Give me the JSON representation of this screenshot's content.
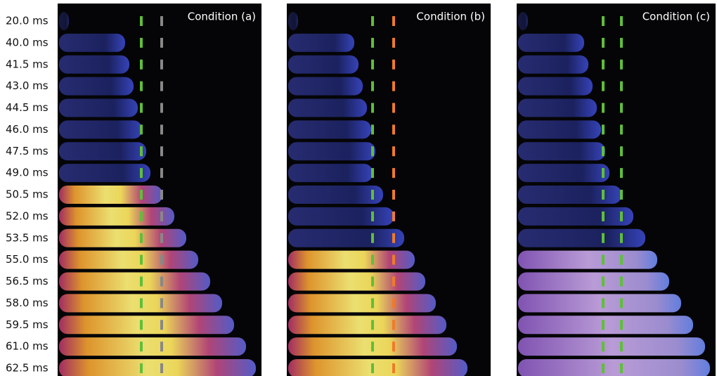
{
  "time_labels": [
    "20.0 ms",
    "40.0 ms",
    "41.5 ms",
    "43.0 ms",
    "44.5 ms",
    "46.0 ms",
    "47.5 ms",
    "49.0 ms",
    "50.5 ms",
    "52.0 ms",
    "53.5 ms",
    "55.0 ms",
    "56.5 ms",
    "58.0 ms",
    "59.5 ms",
    "61.0 ms",
    "62.5 ms"
  ],
  "panels": [
    {
      "title": "Condition (a)"
    },
    {
      "title": "Condition (b)"
    },
    {
      "title": "Condition (c)"
    }
  ]
}
